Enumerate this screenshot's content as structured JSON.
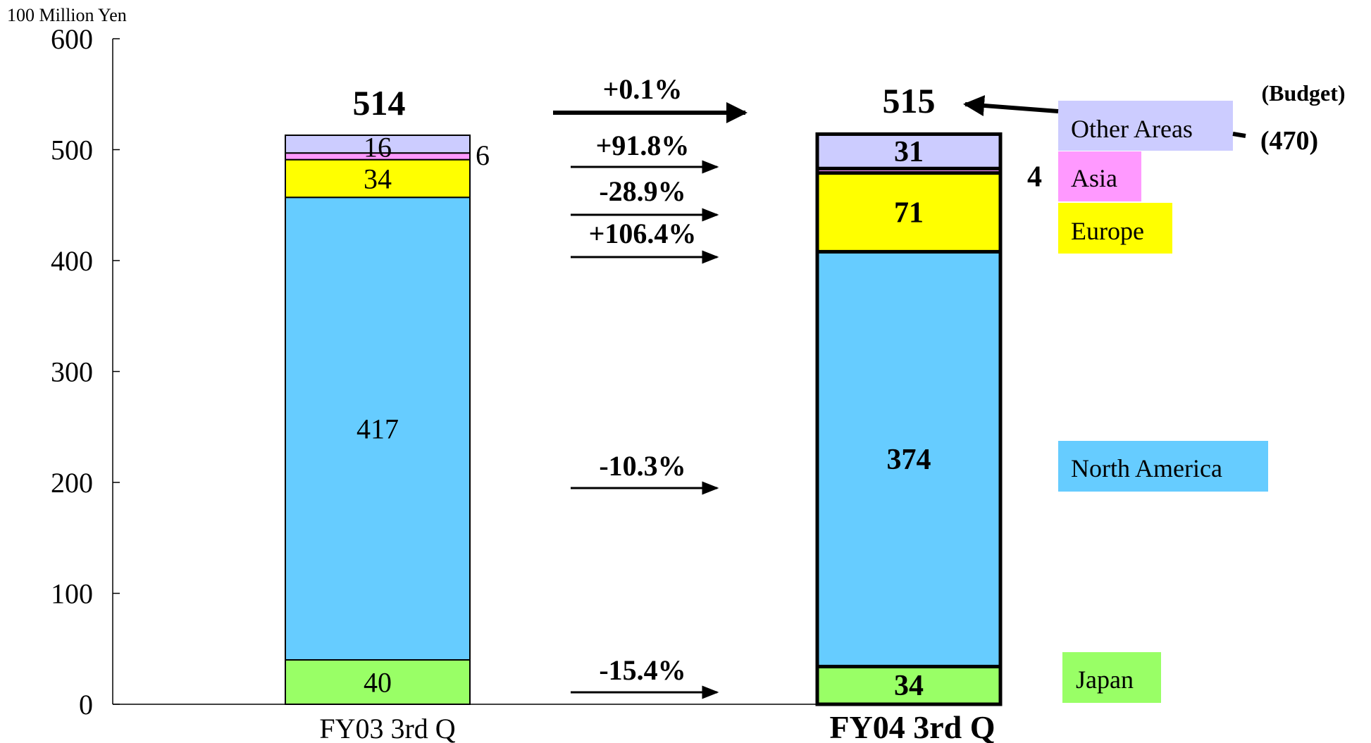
{
  "chart_data": {
    "type": "bar",
    "stacked": true,
    "unit_label": "100 Million Yen",
    "categories": [
      "FY03 3rd Q",
      "FY04 3rd Q"
    ],
    "ylim": [
      0,
      600
    ],
    "yticks": [
      0,
      100,
      200,
      300,
      400,
      500,
      600
    ],
    "grid": false,
    "series": [
      {
        "name": "Japan",
        "values": [
          40,
          34
        ],
        "color": "#99ff66"
      },
      {
        "name": "North America",
        "values": [
          417,
          374
        ],
        "color": "#66ccff"
      },
      {
        "name": "Europe",
        "values": [
          34,
          71
        ],
        "color": "#ffff00"
      },
      {
        "name": "Asia",
        "values": [
          6,
          4
        ],
        "color": "#ff99ff"
      },
      {
        "name": "Other Areas",
        "values": [
          16,
          31
        ],
        "color": "#ccccff"
      }
    ],
    "totals": [
      "514",
      "515"
    ],
    "changes": [
      {
        "series": "Total",
        "text": "+0.1%"
      },
      {
        "series": "Other Areas",
        "text": "+91.8%"
      },
      {
        "series": "Asia",
        "text": "-28.9%"
      },
      {
        "series": "Europe",
        "text": "+106.4%"
      },
      {
        "series": "North America",
        "text": "-10.3%"
      },
      {
        "series": "Japan",
        "text": "-15.4%"
      }
    ],
    "budget": {
      "label": "(Budget)",
      "value": "(470)"
    },
    "legend_placement": "right, next to each segment of the second bar"
  }
}
